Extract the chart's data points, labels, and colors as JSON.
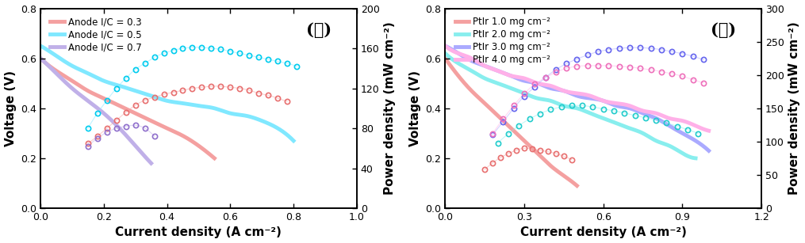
{
  "panel_a": {
    "title": "(가)",
    "xlabel": "Current density (A cm⁻²)",
    "ylabel_left": "Voltage (V)",
    "ylabel_right": "Power density (mW cm⁻²)",
    "xlim": [
      0.0,
      1.0
    ],
    "ylim_left": [
      0.0,
      0.8
    ],
    "ylim_right": [
      0.0,
      200
    ],
    "xticks": [
      0.0,
      0.2,
      0.4,
      0.6,
      0.8,
      1.0
    ],
    "yticks_left": [
      0.0,
      0.2,
      0.4,
      0.6,
      0.8
    ],
    "yticks_right": [
      0,
      40,
      80,
      120,
      160,
      200
    ],
    "series": [
      {
        "label": "Anode I/C = 0.3",
        "color_line": "#F4A0A0",
        "color_dot": "#E87070",
        "vi_x": [
          0.0,
          0.05,
          0.1,
          0.15,
          0.2,
          0.25,
          0.3,
          0.35,
          0.4,
          0.45,
          0.5,
          0.55
        ],
        "vi_y": [
          0.6,
          0.55,
          0.51,
          0.47,
          0.44,
          0.41,
          0.38,
          0.35,
          0.32,
          0.29,
          0.25,
          0.2
        ],
        "pd_x": [
          0.15,
          0.18,
          0.21,
          0.24,
          0.27,
          0.3,
          0.33,
          0.36,
          0.39,
          0.42,
          0.45,
          0.48,
          0.51,
          0.54,
          0.57,
          0.6,
          0.63,
          0.66,
          0.69,
          0.72,
          0.75,
          0.78
        ],
        "pd_y": [
          65,
          72,
          80,
          88,
          96,
          103,
          108,
          111,
          114,
          116,
          118,
          120,
          121,
          122,
          122,
          121,
          120,
          118,
          115,
          113,
          110,
          107
        ]
      },
      {
        "label": "Anode I/C = 0.5",
        "color_line": "#80E8FF",
        "color_dot": "#00CCEE",
        "vi_x": [
          0.0,
          0.05,
          0.1,
          0.15,
          0.2,
          0.25,
          0.3,
          0.35,
          0.4,
          0.45,
          0.5,
          0.55,
          0.6,
          0.65,
          0.7,
          0.75,
          0.8
        ],
        "vi_y": [
          0.65,
          0.61,
          0.57,
          0.54,
          0.51,
          0.49,
          0.47,
          0.45,
          0.43,
          0.42,
          0.41,
          0.4,
          0.38,
          0.37,
          0.35,
          0.32,
          0.27
        ],
        "pd_x": [
          0.15,
          0.18,
          0.21,
          0.24,
          0.27,
          0.3,
          0.33,
          0.36,
          0.39,
          0.42,
          0.45,
          0.48,
          0.51,
          0.54,
          0.57,
          0.6,
          0.63,
          0.66,
          0.69,
          0.72,
          0.75,
          0.78,
          0.81
        ],
        "pd_y": [
          80,
          95,
          108,
          120,
          130,
          139,
          145,
          151,
          155,
          158,
          160,
          161,
          161,
          160,
          159,
          157,
          155,
          153,
          151,
          149,
          147,
          145,
          142
        ]
      },
      {
        "label": "Anode I/C = 0.7",
        "color_line": "#C0B0E8",
        "color_dot": "#9070CC",
        "vi_x": [
          0.0,
          0.05,
          0.1,
          0.15,
          0.2,
          0.25,
          0.3,
          0.35
        ],
        "vi_y": [
          0.6,
          0.54,
          0.48,
          0.43,
          0.38,
          0.32,
          0.25,
          0.18
        ],
        "pd_x": [
          0.15,
          0.18,
          0.21,
          0.24,
          0.27,
          0.3,
          0.33,
          0.36
        ],
        "pd_y": [
          62,
          70,
          76,
          80,
          82,
          83,
          80,
          72
        ]
      }
    ]
  },
  "panel_b": {
    "title": "(나)",
    "xlabel": "Current density (A cm⁻²)",
    "ylabel_left": "Voltage (V)",
    "ylabel_right": "Power density (mW cm⁻²)",
    "xlim": [
      0.0,
      1.2
    ],
    "ylim_left": [
      0.0,
      0.8
    ],
    "ylim_right": [
      0.0,
      300
    ],
    "xticks": [
      0.0,
      0.3,
      0.6,
      0.9,
      1.2
    ],
    "yticks_left": [
      0.0,
      0.2,
      0.4,
      0.6,
      0.8
    ],
    "yticks_right": [
      0,
      50,
      100,
      150,
      200,
      250,
      300
    ],
    "series": [
      {
        "label": "PtIr 1.0 mg cm⁻²",
        "color_line": "#F4A0A0",
        "color_dot": "#E87070",
        "vi_x": [
          0.0,
          0.05,
          0.1,
          0.15,
          0.2,
          0.25,
          0.3,
          0.35,
          0.4,
          0.45,
          0.5
        ],
        "vi_y": [
          0.6,
          0.53,
          0.47,
          0.42,
          0.37,
          0.32,
          0.27,
          0.22,
          0.17,
          0.13,
          0.09
        ],
        "pd_x": [
          0.15,
          0.18,
          0.21,
          0.24,
          0.27,
          0.3,
          0.33,
          0.36,
          0.39,
          0.42,
          0.45,
          0.48
        ],
        "pd_y": [
          58,
          68,
          76,
          82,
          87,
          90,
          89,
          87,
          85,
          82,
          78,
          73
        ]
      },
      {
        "label": "PtIr 2.0 mg cm⁻²",
        "color_line": "#88EEEE",
        "color_dot": "#22CCCC",
        "vi_x": [
          0.0,
          0.05,
          0.1,
          0.15,
          0.2,
          0.25,
          0.3,
          0.35,
          0.4,
          0.45,
          0.5,
          0.55,
          0.6,
          0.65,
          0.7,
          0.75,
          0.8,
          0.85,
          0.9,
          0.95
        ],
        "vi_y": [
          0.62,
          0.58,
          0.55,
          0.52,
          0.5,
          0.48,
          0.46,
          0.44,
          0.43,
          0.41,
          0.4,
          0.38,
          0.36,
          0.34,
          0.32,
          0.3,
          0.27,
          0.25,
          0.22,
          0.2
        ],
        "pd_x": [
          0.2,
          0.24,
          0.28,
          0.32,
          0.36,
          0.4,
          0.44,
          0.48,
          0.52,
          0.56,
          0.6,
          0.64,
          0.68,
          0.72,
          0.76,
          0.8,
          0.84,
          0.88,
          0.92,
          0.96
        ],
        "pd_y": [
          98,
          112,
          124,
          134,
          142,
          148,
          152,
          154,
          154,
          152,
          149,
          146,
          143,
          139,
          136,
          132,
          128,
          123,
          118,
          112
        ]
      },
      {
        "label": "PtIr 3.0 mg cm⁻²",
        "color_line": "#AAAAFF",
        "color_dot": "#6666EE",
        "vi_x": [
          0.0,
          0.05,
          0.1,
          0.15,
          0.2,
          0.25,
          0.3,
          0.35,
          0.4,
          0.45,
          0.5,
          0.55,
          0.6,
          0.65,
          0.7,
          0.75,
          0.8,
          0.85,
          0.9,
          0.95,
          1.0
        ],
        "vi_y": [
          0.65,
          0.62,
          0.59,
          0.57,
          0.55,
          0.53,
          0.51,
          0.5,
          0.48,
          0.47,
          0.45,
          0.44,
          0.43,
          0.41,
          0.4,
          0.38,
          0.36,
          0.33,
          0.3,
          0.27,
          0.23
        ],
        "pd_x": [
          0.18,
          0.22,
          0.26,
          0.3,
          0.34,
          0.38,
          0.42,
          0.46,
          0.5,
          0.54,
          0.58,
          0.62,
          0.66,
          0.7,
          0.74,
          0.78,
          0.82,
          0.86,
          0.9,
          0.94,
          0.98
        ],
        "pd_y": [
          110,
          130,
          150,
          168,
          182,
          196,
          208,
          217,
          224,
          230,
          235,
          238,
          240,
          241,
          241,
          240,
          238,
          235,
          232,
          228,
          223
        ]
      },
      {
        "label": "PtIr 4.0 mg cm⁻²",
        "color_line": "#FFB0E8",
        "color_dot": "#EE70BB",
        "vi_x": [
          0.0,
          0.05,
          0.1,
          0.15,
          0.2,
          0.25,
          0.3,
          0.35,
          0.4,
          0.45,
          0.5,
          0.55,
          0.6,
          0.65,
          0.7,
          0.75,
          0.8,
          0.85,
          0.9,
          0.95,
          1.0
        ],
        "vi_y": [
          0.65,
          0.62,
          0.6,
          0.57,
          0.55,
          0.53,
          0.52,
          0.5,
          0.49,
          0.47,
          0.46,
          0.45,
          0.43,
          0.42,
          0.41,
          0.39,
          0.38,
          0.36,
          0.35,
          0.33,
          0.31
        ],
        "pd_x": [
          0.18,
          0.22,
          0.26,
          0.3,
          0.34,
          0.38,
          0.42,
          0.46,
          0.5,
          0.54,
          0.58,
          0.62,
          0.66,
          0.7,
          0.74,
          0.78,
          0.82,
          0.86,
          0.9,
          0.94,
          0.98
        ],
        "pd_y": [
          112,
          134,
          154,
          172,
          186,
          196,
          204,
          210,
          213,
          214,
          214,
          214,
          213,
          212,
          210,
          208,
          205,
          202,
          198,
          193,
          188
        ]
      }
    ]
  },
  "background_color": "#ffffff",
  "tick_fontsize": 9,
  "label_fontsize": 11,
  "legend_fontsize": 8.5,
  "title_fontsize": 15
}
